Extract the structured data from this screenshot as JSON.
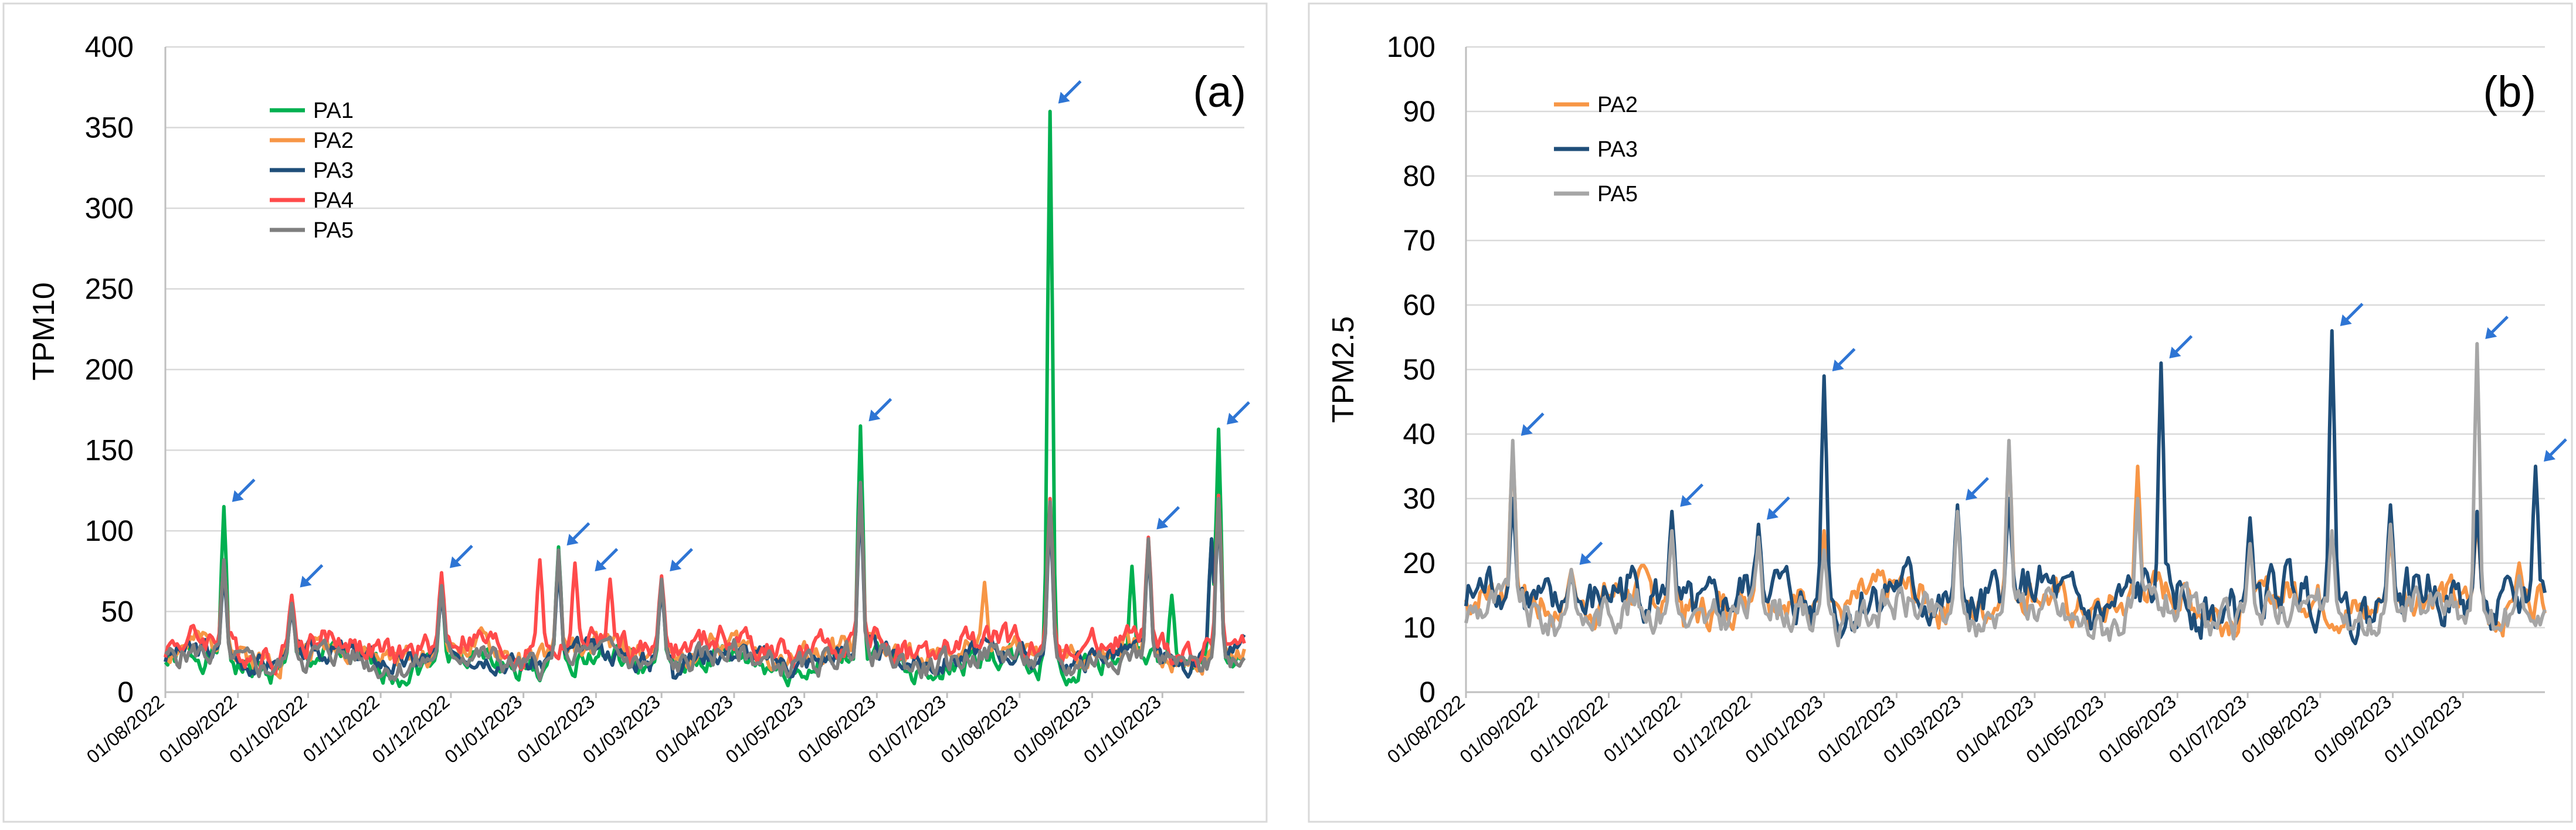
{
  "colors": {
    "PA1": "#00b050",
    "PA2": "#f79646",
    "PA3": "#1f4e79",
    "PA4": "#ff4b4b",
    "PA5": "#7f7f7f",
    "PA5_b": "#a6a6a6",
    "arrow": "#2e75d4"
  },
  "chart_data": [
    {
      "type": "line",
      "panel_label": "(a)",
      "ylabel": "TPM10",
      "xlabel": "",
      "ylim": [
        0,
        400
      ],
      "yticks": [
        "0",
        "50",
        "100",
        "150",
        "200",
        "250",
        "300",
        "350",
        "400"
      ],
      "xlim_days": [
        0,
        461
      ],
      "xtick_labels": [
        "01/08/2022",
        "01/09/2022",
        "01/10/2022",
        "01/11/2022",
        "01/12/2022",
        "01/01/2023",
        "01/02/2023",
        "01/03/2023",
        "01/04/2023",
        "01/05/2023",
        "01/06/2023",
        "01/07/2023",
        "01/08/2023",
        "01/09/2023",
        "01/10/2023"
      ],
      "xtick_days": [
        0,
        31,
        61,
        92,
        122,
        153,
        184,
        212,
        243,
        273,
        304,
        334,
        365,
        396,
        426
      ],
      "legend": [
        "PA1",
        "PA2",
        "PA3",
        "PA4",
        "PA5"
      ],
      "legend_position": "top-left",
      "series": [
        {
          "name": "PA1",
          "colorKey": "PA1",
          "peaks": [
            [
              25,
              115
            ],
            [
              54,
              62
            ],
            [
              118,
              55
            ],
            [
              185,
              20
            ],
            [
              272,
              30
            ],
            [
              303,
              40
            ]
          ],
          "rawPeaks": [
            [
              25,
              115
            ],
            [
              54,
              60
            ],
            [
              118,
              65
            ],
            [
              168,
              90
            ],
            [
              212,
              70
            ],
            [
              297,
              165
            ],
            [
              378,
              360
            ],
            [
              413,
              78
            ],
            [
              450,
              163
            ],
            [
              430,
              60
            ],
            [
              447,
              95
            ]
          ],
          "base": 18,
          "amp": 8,
          "seed": 1
        },
        {
          "name": "PA2",
          "colorKey": "PA2",
          "rawPeaks": [
            [
              25,
              80
            ],
            [
              54,
              55
            ],
            [
              118,
              65
            ],
            [
              168,
              80
            ],
            [
              212,
              68
            ],
            [
              297,
              125
            ],
            [
              350,
              68
            ],
            [
              378,
              115
            ],
            [
              420,
              95
            ],
            [
              450,
              120
            ]
          ],
          "base": 25,
          "amp": 8,
          "seed": 2
        },
        {
          "name": "PA3",
          "colorKey": "PA3",
          "rawPeaks": [
            [
              25,
              75
            ],
            [
              54,
              52
            ],
            [
              118,
              62
            ],
            [
              168,
              78
            ],
            [
              212,
              65
            ],
            [
              297,
              120
            ],
            [
              378,
              110
            ],
            [
              420,
              90
            ],
            [
              447,
              95
            ],
            [
              450,
              115
            ]
          ],
          "base": 22,
          "amp": 7,
          "seed": 3
        },
        {
          "name": "PA4",
          "colorKey": "PA4",
          "rawPeaks": [
            [
              25,
              80
            ],
            [
              54,
              60
            ],
            [
              118,
              74
            ],
            [
              160,
              82
            ],
            [
              175,
              80
            ],
            [
              190,
              70
            ],
            [
              212,
              72
            ],
            [
              297,
              128
            ],
            [
              378,
              120
            ],
            [
              420,
              96
            ],
            [
              450,
              122
            ]
          ],
          "base": 28,
          "amp": 9,
          "seed": 4
        },
        {
          "name": "PA5",
          "colorKey": "PA5",
          "rawPeaks": [
            [
              25,
              82
            ],
            [
              54,
              55
            ],
            [
              118,
              66
            ],
            [
              168,
              88
            ],
            [
              212,
              70
            ],
            [
              297,
              130
            ],
            [
              378,
              118
            ],
            [
              420,
              95
            ],
            [
              450,
              120
            ]
          ],
          "base": 20,
          "amp": 8,
          "seed": 5
        }
      ],
      "annotations": [
        [
          25,
          115
        ],
        [
          54,
          62
        ],
        [
          118,
          74
        ],
        [
          168,
          88
        ],
        [
          212,
          72
        ],
        [
          180,
          72
        ],
        [
          297,
          165
        ],
        [
          378,
          362
        ],
        [
          420,
          98
        ],
        [
          450,
          163
        ]
      ],
      "annotations_note": "blue arrows marking peak events"
    },
    {
      "type": "line",
      "panel_label": "(b)",
      "ylabel": "TPM2.5",
      "xlabel": "",
      "ylim": [
        0,
        100
      ],
      "yticks": [
        "0",
        "10",
        "20",
        "30",
        "40",
        "50",
        "60",
        "70",
        "80",
        "90",
        "100"
      ],
      "xlim_days": [
        0,
        461
      ],
      "xtick_labels": [
        "01/08/2022",
        "01/09/2022",
        "01/10/2022",
        "01/11/2022",
        "01/12/2022",
        "01/01/2023",
        "01/02/2023",
        "01/03/2023",
        "01/04/2023",
        "01/05/2023",
        "01/06/2023",
        "01/07/2023",
        "01/08/2023",
        "01/09/2023",
        "01/10/2023"
      ],
      "xtick_days": [
        0,
        31,
        61,
        92,
        122,
        153,
        184,
        212,
        243,
        273,
        304,
        334,
        365,
        396,
        426
      ],
      "legend": [
        "PA2",
        "PA3",
        "PA5"
      ],
      "legend_position": "top-left",
      "series": [
        {
          "name": "PA2",
          "colorKey": "PA2",
          "rawPeaks": [
            [
              20,
              38
            ],
            [
              45,
              19
            ],
            [
              88,
              27
            ],
            [
              125,
              25
            ],
            [
              153,
              25
            ],
            [
              210,
              28
            ],
            [
              232,
              38
            ],
            [
              287,
              35
            ],
            [
              335,
              24
            ],
            [
              395,
              24
            ],
            [
              432,
              27
            ],
            [
              450,
              20
            ]
          ],
          "base": 14,
          "amp": 3,
          "seed": 7
        },
        {
          "name": "PA3",
          "colorKey": "PA3",
          "rawPeaks": [
            [
              20,
              30
            ],
            [
              45,
              18
            ],
            [
              88,
              28
            ],
            [
              125,
              26
            ],
            [
              153,
              49
            ],
            [
              210,
              29
            ],
            [
              232,
              30
            ],
            [
              297,
              51
            ],
            [
              335,
              27
            ],
            [
              370,
              56
            ],
            [
              395,
              29
            ],
            [
              432,
              28
            ],
            [
              457,
              35
            ]
          ],
          "base": 14,
          "amp": 4,
          "seed": 8
        },
        {
          "name": "PA5",
          "colorKey": "PA5_b",
          "rawPeaks": [
            [
              20,
              39
            ],
            [
              45,
              19
            ],
            [
              88,
              25
            ],
            [
              125,
              24
            ],
            [
              153,
              22
            ],
            [
              210,
              28
            ],
            [
              232,
              39
            ],
            [
              287,
              30
            ],
            [
              335,
              23
            ],
            [
              370,
              25
            ],
            [
              395,
              26
            ],
            [
              432,
              54
            ],
            [
              450,
              18
            ]
          ],
          "base": 12,
          "amp": 3,
          "seed": 9
        }
      ],
      "annotations": [
        [
          20,
          39
        ],
        [
          45,
          19
        ],
        [
          88,
          28
        ],
        [
          125,
          26
        ],
        [
          153,
          49
        ],
        [
          210,
          29
        ],
        [
          297,
          51
        ],
        [
          370,
          56
        ],
        [
          432,
          54
        ],
        [
          457,
          35
        ]
      ],
      "annotations_note": "blue arrows marking peak events"
    }
  ]
}
